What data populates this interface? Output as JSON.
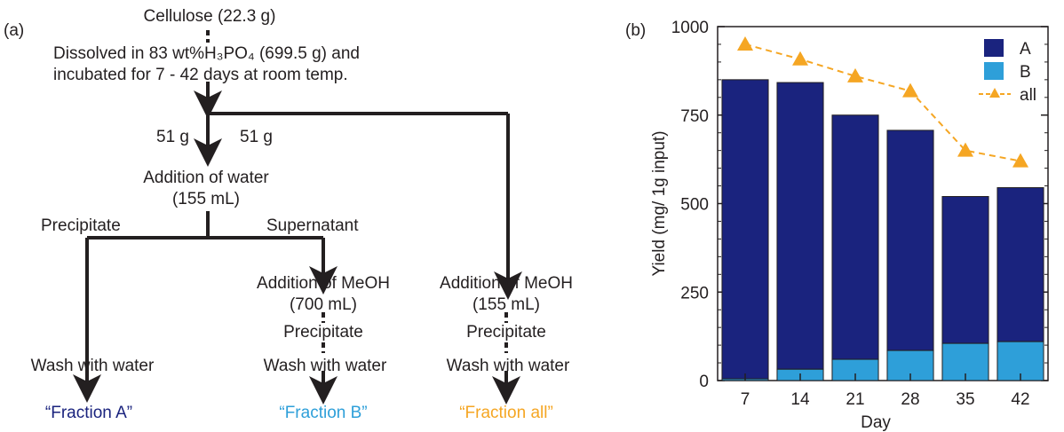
{
  "flowchart": {
    "panel_label": "(a)",
    "start": "Cellulose (22.3 g)",
    "dissolve_line1": "Dissolved in 83 wt%H₃PO₄ (699.5 g) and",
    "dissolve_line2": "incubated for 7 - 42 days at room temp.",
    "split_left": "51 g",
    "split_right": "51 g",
    "water_line1": "Addition of water",
    "water_line2": "(155 mL)",
    "precipitate_label": "Precipitate",
    "supernatant_label": "Supernatant",
    "meoh_b_line1": "Addition of MeOH",
    "meoh_b_line2": "(700 mL)",
    "meoh_all_line1": "Addition of MeOH",
    "meoh_all_line2": "(155 mL)",
    "precipitate_b": "Precipitate",
    "precipitate_all": "Precipitate",
    "wash_a": "Wash with water",
    "wash_b": "Wash with water",
    "wash_all": "Wash with water",
    "fraction_a": "“Fraction A”",
    "fraction_b": "“Fraction B”",
    "fraction_all": "“Fraction all”",
    "colors": {
      "fraction_a": "#1a237e",
      "fraction_b": "#2e9fd9",
      "fraction_all": "#f5a623"
    }
  },
  "chart_data": {
    "panel_label": "(b)",
    "type": "bar",
    "stacked": true,
    "categories": [
      "7",
      "14",
      "21",
      "28",
      "35",
      "42"
    ],
    "series": [
      {
        "name": "A",
        "values": [
          845,
          810,
          690,
          622,
          415,
          435
        ],
        "color": "#1a237e",
        "kind": "bar"
      },
      {
        "name": "B",
        "values": [
          5,
          32,
          60,
          85,
          105,
          110
        ],
        "color": "#2e9fd9",
        "kind": "bar"
      },
      {
        "name": "all",
        "values": [
          950,
          908,
          860,
          818,
          650,
          620
        ],
        "color": "#f5a623",
        "kind": "line-triangle-dashed"
      }
    ],
    "xlabel": "Day",
    "ylabel": "Yield (mg/ 1g input)",
    "ylim": [
      0,
      1000
    ],
    "yticks": [
      "0",
      "250",
      "500",
      "750",
      "1000"
    ],
    "legend_position": "top-right"
  }
}
